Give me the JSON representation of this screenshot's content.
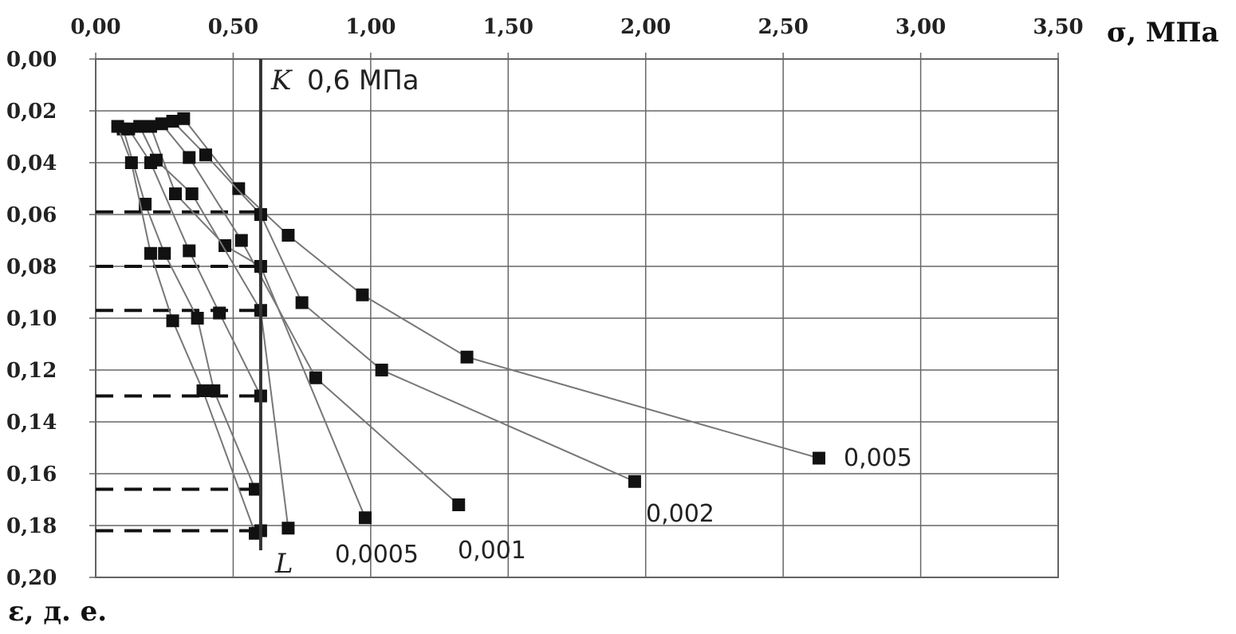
{
  "chart_data": {
    "type": "line",
    "x_axis_label": "σ, МПа",
    "y_axis_label": "ε, д. е.",
    "x_ticks": [
      "0,00",
      "0,50",
      "1,00",
      "1,50",
      "2,00",
      "2,50",
      "3,00",
      "3,50"
    ],
    "y_ticks": [
      "0,00",
      "0,02",
      "0,04",
      "0,06",
      "0,08",
      "0,10",
      "0,12",
      "0,14",
      "0,16",
      "0,18",
      "0,20"
    ],
    "xlim": [
      0,
      3.5
    ],
    "ylim": [
      0,
      0.2
    ],
    "x_axis_position": "top",
    "y_axis_inverted": true,
    "grid": true,
    "annotations": {
      "k_label": "K",
      "k_value": "0,6 МПа",
      "l_label": "L",
      "vertical_line_x": 0.6
    },
    "series": [
      {
        "name": "0,005",
        "points": [
          [
            0.32,
            0.023
          ],
          [
            0.52,
            0.05
          ],
          [
            0.7,
            0.068
          ],
          [
            0.97,
            0.091
          ],
          [
            1.35,
            0.115
          ],
          [
            2.63,
            0.154
          ]
        ]
      },
      {
        "name": "0,002",
        "points": [
          [
            0.28,
            0.024
          ],
          [
            0.4,
            0.037
          ],
          [
            0.6,
            0.06
          ],
          [
            0.75,
            0.094
          ],
          [
            1.04,
            0.12
          ],
          [
            1.96,
            0.163
          ]
        ]
      },
      {
        "name": "0,001",
        "points": [
          [
            0.24,
            0.025
          ],
          [
            0.34,
            0.038
          ],
          [
            0.53,
            0.07
          ],
          [
            0.8,
            0.123
          ],
          [
            1.32,
            0.172
          ]
        ]
      },
      {
        "name": "0,0005",
        "points": [
          [
            0.2,
            0.026
          ],
          [
            0.29,
            0.052
          ],
          [
            0.47,
            0.072
          ],
          [
            0.6,
            0.08
          ],
          [
            0.98,
            0.177
          ]
        ]
      },
      {
        "name": "",
        "points": [
          [
            0.16,
            0.026
          ],
          [
            0.22,
            0.039
          ],
          [
            0.35,
            0.052
          ],
          [
            0.6,
            0.097
          ],
          [
            0.7,
            0.181
          ]
        ]
      },
      {
        "name": "",
        "points": [
          [
            0.12,
            0.027
          ],
          [
            0.2,
            0.04
          ],
          [
            0.34,
            0.074
          ],
          [
            0.45,
            0.098
          ],
          [
            0.6,
            0.13
          ],
          [
            0.6,
            0.182
          ]
        ]
      },
      {
        "name": "",
        "points": [
          [
            0.1,
            0.027
          ],
          [
            0.18,
            0.056
          ],
          [
            0.25,
            0.075
          ],
          [
            0.37,
            0.1
          ],
          [
            0.43,
            0.128
          ],
          [
            0.58,
            0.166
          ]
        ]
      },
      {
        "name": "",
        "points": [
          [
            0.08,
            0.026
          ],
          [
            0.13,
            0.04
          ],
          [
            0.2,
            0.075
          ],
          [
            0.28,
            0.101
          ],
          [
            0.39,
            0.128
          ],
          [
            0.58,
            0.183
          ]
        ]
      }
    ],
    "dashed_levels": [
      0.059,
      0.08,
      0.097,
      0.13,
      0.166,
      0.182
    ]
  }
}
